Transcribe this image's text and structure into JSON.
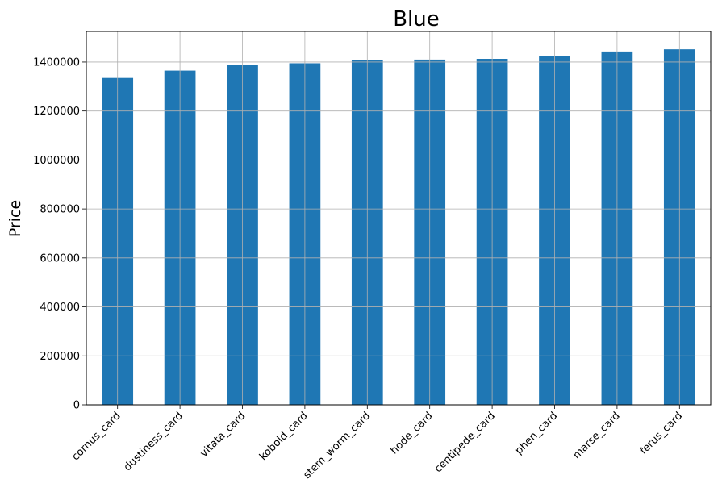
{
  "chart_data": {
    "type": "bar",
    "title": "Blue",
    "xlabel": "",
    "ylabel": "Price",
    "categories": [
      "cornus_card",
      "dustiness_card",
      "vitata_card",
      "kobold_card",
      "stem_worm_card",
      "hode_card",
      "centipede_card",
      "phen_card",
      "marse_card",
      "ferus_card"
    ],
    "values": [
      1335000,
      1365000,
      1388000,
      1395000,
      1408000,
      1410000,
      1413000,
      1424000,
      1443000,
      1452000
    ],
    "ylim": [
      0,
      1525000
    ],
    "yticks": [
      0,
      200000,
      400000,
      600000,
      800000,
      1000000,
      1200000,
      1400000
    ],
    "ytick_labels": [
      "0",
      "200000",
      "400000",
      "600000",
      "800000",
      "1000000",
      "1200000",
      "1400000"
    ],
    "grid": true,
    "bar_color": "#1f77b4"
  }
}
